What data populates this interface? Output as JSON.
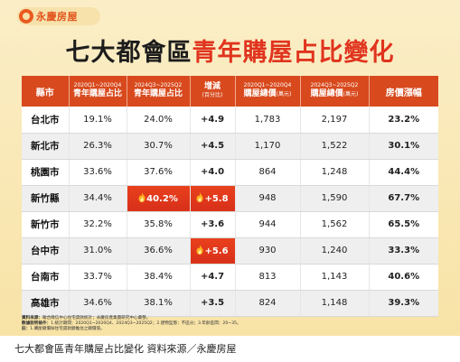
{
  "brand": {
    "logo_text": "永慶房屋"
  },
  "headline": {
    "part1": "七大都會區",
    "part2": "青年購屋占比變化"
  },
  "table": {
    "headers": [
      {
        "main": "縣市"
      },
      {
        "sub": "2020Q1~2020Q4",
        "main": "青年購屋占比"
      },
      {
        "sub": "2024Q3~2025Q2",
        "main": "青年購屋占比"
      },
      {
        "main": "增減",
        "paren": "(百分比)"
      },
      {
        "sub": "2020Q1~2020Q4",
        "main": "購屋總價",
        "unit": "(萬元)"
      },
      {
        "sub": "2024Q3~2025Q2",
        "main": "購屋總價",
        "unit": "(萬元)"
      },
      {
        "main": "房價漲幅"
      }
    ],
    "rows": [
      {
        "city": "台北市",
        "share_2020": "19.1%",
        "share_2024": "24.0%",
        "change": "+4.9",
        "price_2020": "1,783",
        "price_2024": "2,197",
        "price_growth": "23.2%",
        "hot_share": false,
        "hot_change": false
      },
      {
        "city": "新北市",
        "share_2020": "26.3%",
        "share_2024": "30.7%",
        "change": "+4.5",
        "price_2020": "1,170",
        "price_2024": "1,522",
        "price_growth": "30.1%",
        "hot_share": false,
        "hot_change": false
      },
      {
        "city": "桃園市",
        "share_2020": "33.6%",
        "share_2024": "37.6%",
        "change": "+4.0",
        "price_2020": "864",
        "price_2024": "1,248",
        "price_growth": "44.4%",
        "hot_share": false,
        "hot_change": false
      },
      {
        "city": "新竹縣",
        "share_2020": "34.4%",
        "share_2024": "40.2%",
        "change": "+5.8",
        "price_2020": "948",
        "price_2024": "1,590",
        "price_growth": "67.7%",
        "hot_share": true,
        "hot_change": true
      },
      {
        "city": "新竹市",
        "share_2020": "32.2%",
        "share_2024": "35.8%",
        "change": "+3.6",
        "price_2020": "944",
        "price_2024": "1,562",
        "price_growth": "65.5%",
        "hot_share": false,
        "hot_change": false
      },
      {
        "city": "台中市",
        "share_2020": "31.0%",
        "share_2024": "36.6%",
        "change": "+5.6",
        "price_2020": "930",
        "price_2024": "1,240",
        "price_growth": "33.3%",
        "hot_share": false,
        "hot_change": true
      },
      {
        "city": "台南市",
        "share_2020": "33.7%",
        "share_2024": "38.4%",
        "change": "+4.7",
        "price_2020": "813",
        "price_2024": "1,143",
        "price_growth": "40.6%",
        "hot_share": false,
        "hot_change": false
      },
      {
        "city": "高雄市",
        "share_2020": "34.6%",
        "share_2024": "38.1%",
        "change": "+3.5",
        "price_2020": "824",
        "price_2024": "1,148",
        "price_growth": "39.3%",
        "hot_share": false,
        "hot_change": false
      }
    ]
  },
  "notes": [
    {
      "label": "資料來源：",
      "text": "聯合徵信中心住宅貸款統計；永慶房產集團研究中心彙整。"
    },
    {
      "label": "數據說明條件：",
      "text": "1.統計期間：2020Q1~2020Q4、2024Q3~2025Q2；2.建物型態：不區分；3.年齡區間：20~35。"
    },
    {
      "label": "註：",
      "text": "1.購屋總價採住宅貸款額推估之總價值。"
    }
  ],
  "caption": "七大都會區青年購屋占比變化 資料來源／永慶房屋",
  "colors": {
    "header_red": "#d84a1e",
    "hot_red": "#e0341e",
    "background_cream": "#fbeec7"
  }
}
